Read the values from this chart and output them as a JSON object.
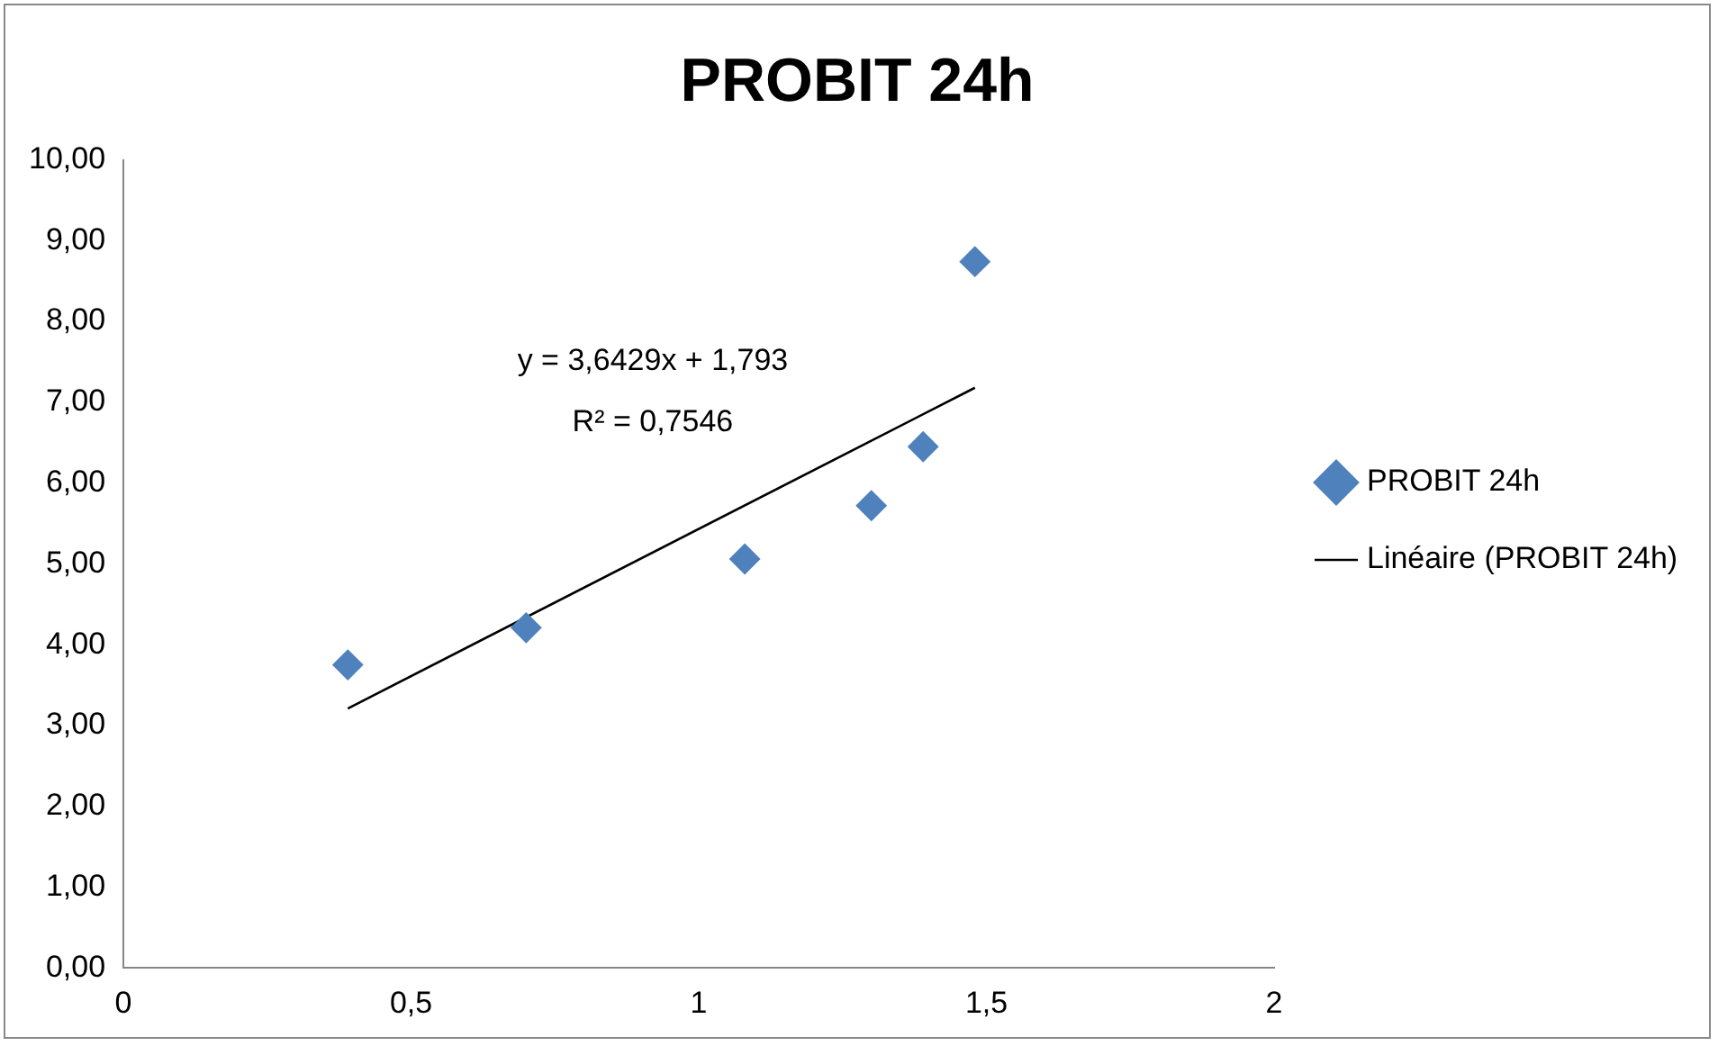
{
  "chart_data": {
    "type": "scatter",
    "title": "PROBIT 24h",
    "series": [
      {
        "name": "PROBIT 24h",
        "color": "#4f81bd",
        "marker": "diamond",
        "x": [
          0.39,
          0.7,
          1.08,
          1.3,
          1.39,
          1.48
        ],
        "values": [
          3.75,
          4.21,
          5.06,
          5.72,
          6.45,
          8.74
        ]
      },
      {
        "name": "Linéaire (PROBIT 24h)",
        "type": "line",
        "color": "#000000",
        "marker": "none",
        "line_style": "solid",
        "x": [
          0.39,
          1.48
        ],
        "values": [
          3.21,
          7.18
        ]
      }
    ],
    "xlim": [
      0,
      2
    ],
    "xticks": [
      0,
      {
        "value": 0.5,
        "label": "0,5"
      },
      1,
      {
        "value": 1.5,
        "label": "1,5"
      },
      2
    ],
    "ylim": [
      0,
      10
    ],
    "yticks": [
      {
        "value": 0,
        "label": "0,00"
      },
      {
        "value": 1,
        "label": "1,00"
      },
      {
        "value": 2,
        "label": "2,00"
      },
      {
        "value": 3,
        "label": "3,00"
      },
      {
        "value": 4,
        "label": "4,00"
      },
      {
        "value": 5,
        "label": "5,00"
      },
      {
        "value": 6,
        "label": "6,00"
      },
      {
        "value": 7,
        "label": "7,00"
      },
      {
        "value": 8,
        "label": "8,00"
      },
      {
        "value": 9,
        "label": "9,00"
      },
      {
        "value": 10,
        "label": "10,00"
      }
    ],
    "annotations": [
      "y = 3,6429x + 1,793",
      "R² = 0,7546"
    ],
    "grid": false,
    "legend": "right"
  }
}
